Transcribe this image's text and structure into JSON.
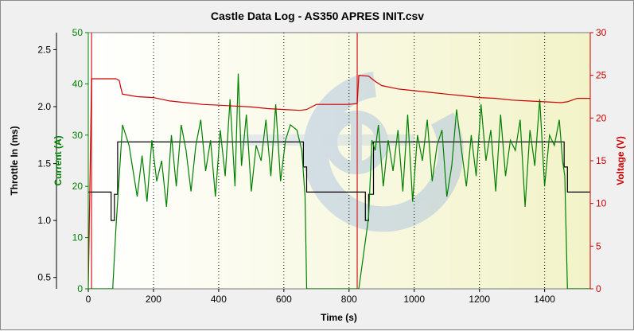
{
  "chart_data": {
    "type": "line",
    "title": "Castle Data Log - AS350 APRES INIT.csv",
    "xlabel": "Time (s)",
    "xlim": [
      0,
      1540
    ],
    "xticks": [
      0,
      200,
      400,
      600,
      800,
      1000,
      1200,
      1400
    ],
    "grid": "vertical dotted at x ticks",
    "axes": {
      "throttle": {
        "label": "Throttle In (ms)",
        "color": "#000000",
        "side": "left-outer",
        "range": [
          0.4,
          2.65
        ],
        "ticks": [
          "0.5",
          "1.0",
          "1.5",
          "2.0",
          "2.5"
        ]
      },
      "current": {
        "label": "Current (A)",
        "color": "#008000",
        "side": "left-inner",
        "range": [
          0,
          50
        ],
        "ticks": [
          "0",
          "10",
          "20",
          "30",
          "40",
          "50"
        ]
      },
      "voltage": {
        "label": "Voltage (V)",
        "color": "#cc0000",
        "side": "right",
        "range": [
          0,
          30
        ],
        "ticks": [
          "0",
          "5",
          "10",
          "15",
          "20",
          "25",
          "30"
        ]
      }
    },
    "markers": [
      {
        "x": 10,
        "color": "#dd4444"
      },
      {
        "x": 825,
        "color": "#dd4444"
      }
    ],
    "series": [
      {
        "axis": "throttle",
        "color": "#000000",
        "x": [
          0,
          70,
          70,
          80,
          80,
          90,
          90,
          660,
          660,
          670,
          670,
          850,
          850,
          860,
          860,
          875,
          875,
          1460,
          1460,
          1470,
          1470,
          1540
        ],
        "y": [
          1.25,
          1.25,
          1.0,
          1.0,
          1.23,
          1.23,
          1.69,
          1.69,
          1.47,
          1.47,
          1.25,
          1.25,
          1.0,
          1.0,
          1.23,
          1.23,
          1.69,
          1.69,
          1.47,
          1.47,
          1.25,
          1.25
        ]
      },
      {
        "axis": "current",
        "color": "#008000",
        "x": [
          0,
          75,
          85,
          95,
          105,
          115,
          125,
          135,
          150,
          165,
          180,
          195,
          210,
          225,
          240,
          255,
          270,
          285,
          300,
          315,
          330,
          345,
          360,
          375,
          390,
          405,
          420,
          435,
          450,
          460,
          470,
          485,
          500,
          515,
          530,
          545,
          560,
          575,
          590,
          605,
          620,
          640,
          655,
          665,
          670,
          830,
          860,
          870,
          880,
          890,
          905,
          920,
          935,
          950,
          965,
          980,
          995,
          1010,
          1025,
          1040,
          1055,
          1070,
          1085,
          1100,
          1115,
          1130,
          1145,
          1160,
          1175,
          1190,
          1205,
          1220,
          1235,
          1250,
          1265,
          1280,
          1295,
          1310,
          1325,
          1340,
          1355,
          1370,
          1385,
          1400,
          1415,
          1430,
          1445,
          1455,
          1462,
          1470,
          1540
        ],
        "y": [
          0,
          0,
          12,
          22,
          32,
          30,
          28,
          24,
          18,
          26,
          17,
          29,
          21,
          25,
          16,
          30,
          20,
          32,
          27,
          19,
          28,
          33,
          23,
          29,
          18,
          31,
          22,
          37,
          20,
          42,
          24,
          34,
          19,
          28,
          25,
          33,
          22,
          36,
          21,
          29,
          32,
          31,
          27,
          18,
          0,
          0,
          14,
          29,
          27,
          32,
          20,
          29,
          23,
          31,
          19,
          34,
          17,
          30,
          25,
          33,
          21,
          28,
          31,
          18,
          24,
          35,
          27,
          20,
          30,
          22,
          36,
          25,
          31,
          19,
          34,
          22,
          29,
          27,
          33,
          16,
          31,
          24,
          37,
          20,
          30,
          28,
          33,
          25,
          22,
          0,
          0
        ]
      },
      {
        "axis": "voltage",
        "color": "#cc0000",
        "x": [
          0,
          10,
          85,
          95,
          100,
          105,
          150,
          200,
          250,
          300,
          350,
          400,
          450,
          500,
          550,
          600,
          650,
          670,
          700,
          750,
          800,
          825,
          830,
          860,
          880,
          900,
          950,
          1000,
          1050,
          1100,
          1150,
          1200,
          1250,
          1300,
          1350,
          1400,
          1450,
          1470,
          1500,
          1540
        ],
        "y": [
          0,
          24.6,
          24.6,
          24.4,
          23.5,
          22.8,
          22.5,
          22.4,
          22.0,
          21.8,
          21.6,
          21.5,
          21.4,
          21.3,
          21.1,
          21.0,
          20.9,
          21.0,
          21.6,
          21.6,
          21.6,
          21.7,
          25.0,
          24.9,
          24.3,
          23.8,
          23.4,
          23.2,
          23.0,
          22.8,
          22.6,
          22.4,
          22.3,
          22.1,
          22.0,
          21.9,
          21.8,
          21.9,
          22.3,
          22.3
        ]
      }
    ]
  }
}
